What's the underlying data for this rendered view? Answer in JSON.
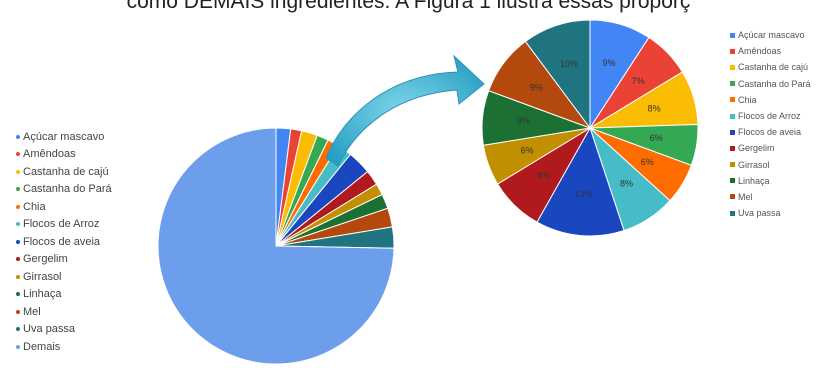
{
  "header": {
    "text": "como DEMAIS ingredientes. A Figura 1 ilustra essas proporç"
  },
  "colors": {
    "Açúcar mascavo": "#4285f4",
    "Amêndoas": "#ea4335",
    "Castanha de cajú": "#fbbc04",
    "Castanha do Pará": "#34a853",
    "Chia": "#ff6d01",
    "Flocos de Arroz": "#46bdc6",
    "Flocos de aveia": "#1a46c0",
    "Gergelim": "#b0191d",
    "Girrasol": "#c28f00",
    "Linhaça": "#1d7034",
    "Mel": "#b3490c",
    "Uva passa": "#1f7480",
    "Demais": "#6d9eeb"
  },
  "chart_data": [
    {
      "type": "pie",
      "legend_position": "left",
      "start_angle_deg": 0,
      "categories": [
        "Açúcar mascavo",
        "Amêndoas",
        "Castanha de cajú",
        "Castanha do Pará",
        "Chia",
        "Flocos de Arroz",
        "Flocos de aveia",
        "Gergelim",
        "Girrasol",
        "Linhaça",
        "Mel",
        "Uva passa",
        "Demais"
      ],
      "values": [
        2.0,
        1.5,
        2.2,
        1.6,
        1.6,
        2.0,
        3.3,
        2.1,
        1.6,
        2.0,
        2.6,
        2.9,
        75.0
      ]
    },
    {
      "type": "pie",
      "legend_position": "right",
      "start_angle_deg": 0,
      "categories": [
        "Açúcar mascavo",
        "Amêndoas",
        "Castanha de cajú",
        "Castanha do Pará",
        "Chia",
        "Flocos de Arroz",
        "Flocos de aveia",
        "Gergelim",
        "Girrasol",
        "Linhaça",
        "Mel",
        "Uva passa"
      ],
      "values": [
        9,
        7,
        8,
        6,
        6,
        8,
        13,
        8,
        6,
        8,
        9,
        10
      ],
      "data_labels": [
        "9%",
        "7%",
        "8%",
        "6%",
        "6%",
        "8%",
        "13%",
        "8%",
        "6%",
        "8%",
        "9%",
        "10%"
      ]
    }
  ]
}
